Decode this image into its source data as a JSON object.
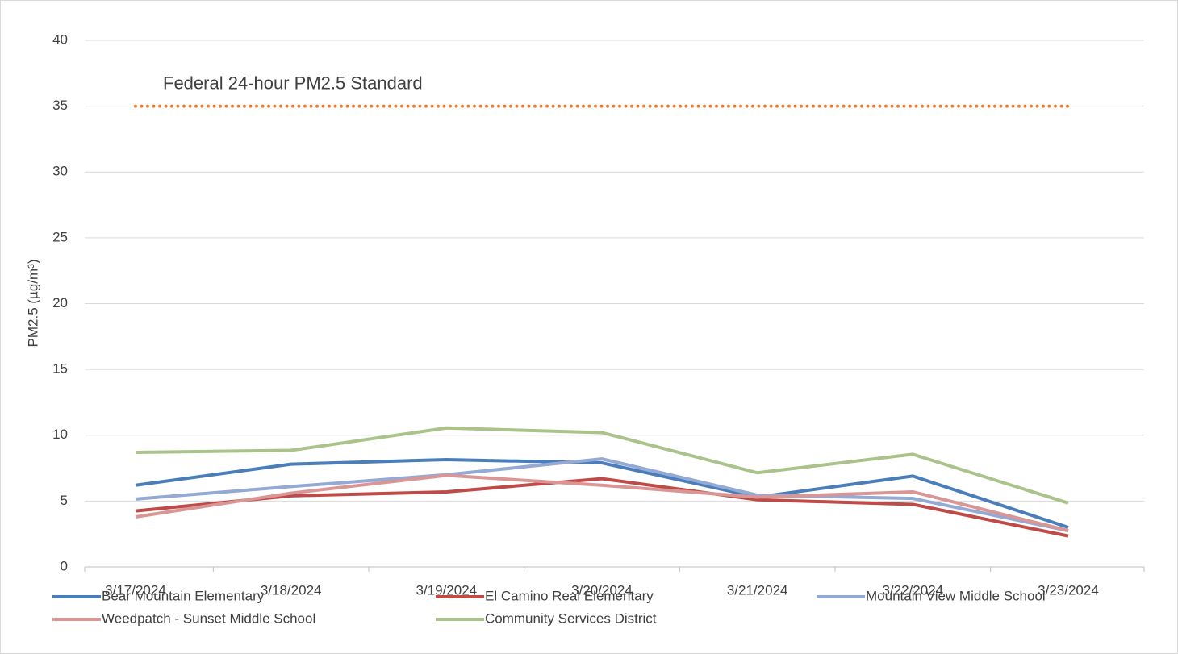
{
  "chart_data": {
    "type": "line",
    "y_label": "PM2.5 (µg/m³)",
    "categories": [
      "3/17/2024",
      "3/18/2024",
      "3/19/2024",
      "3/20/2024",
      "3/21/2024",
      "3/22/2024",
      "3/23/2024"
    ],
    "series": [
      {
        "name": "Bear Mountain Elementary",
        "color": "#4a7ebb",
        "values": [
          6.2,
          7.8,
          8.15,
          7.9,
          5.3,
          6.9,
          3.0
        ]
      },
      {
        "name": "El Camino Real Elementary",
        "color": "#be4b48",
        "values": [
          4.25,
          5.4,
          5.7,
          6.7,
          5.1,
          4.75,
          2.35
        ]
      },
      {
        "name": "Mountain View Middle School",
        "color": "#94a9d3",
        "values": [
          5.15,
          6.1,
          7.0,
          8.2,
          5.45,
          5.2,
          2.75
        ]
      },
      {
        "name": "Weedpatch - Sunset Middle School",
        "color": "#d99694",
        "values": [
          3.8,
          5.6,
          6.95,
          6.2,
          5.3,
          5.7,
          2.75
        ]
      },
      {
        "name": "Community Services District",
        "color": "#a9c38b",
        "values": [
          8.7,
          8.85,
          10.55,
          10.2,
          7.15,
          8.55,
          4.85
        ]
      }
    ],
    "reference_line": {
      "label": "Federal 24-hour PM2.5 Standard",
      "value": 35,
      "color": "#ed7d31"
    },
    "ylim": [
      0,
      40
    ],
    "yticks": [
      0,
      5,
      10,
      15,
      20,
      25,
      30,
      35,
      40
    ],
    "grid": true,
    "legend": "bottom"
  }
}
